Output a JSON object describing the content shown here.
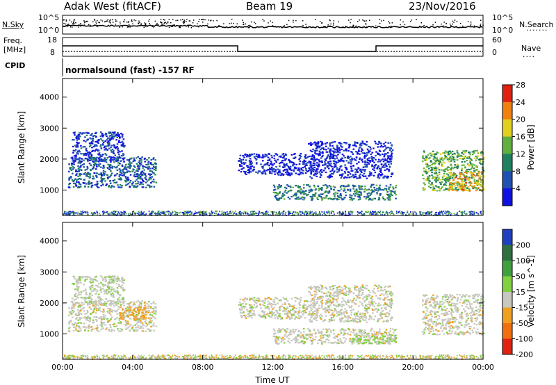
{
  "header": {
    "title": "Adak West (fitACF)",
    "beam": "Beam 19",
    "date": "23/Nov/2016"
  },
  "summary_panels": {
    "nsky_label": "N.Sky",
    "nsky_ticks": [
      "10^5",
      "10^0"
    ],
    "nsearch_label": "N.Search",
    "nsearch_ticks": [
      "10^5",
      "10^0"
    ],
    "freq_label_line1": "Freq.",
    "freq_label_line2": "[MHz]",
    "freq_ticks": [
      "18",
      "8"
    ],
    "nave_label": "Nave",
    "nave_ticks": [
      "60",
      "0"
    ],
    "cpid_label": "CPID",
    "cpid_text": "normalsound (fast) -157 RF"
  },
  "chart_data": [
    {
      "type": "heatmap",
      "panel": "power",
      "xlabel": "Time UT",
      "ylabel": "Slant Range [km]",
      "x_ticks": [
        "00:00",
        "04:00",
        "08:00",
        "12:00",
        "16:00",
        "20:00",
        "00:00"
      ],
      "x_range_hours": [
        0,
        24
      ],
      "y_ticks": [
        1000,
        2000,
        3000,
        4000
      ],
      "y_range_km": [
        180,
        4600
      ],
      "colorbar_label": "Power [dB]",
      "colorbar_ticks": [
        4,
        8,
        12,
        16,
        20,
        24,
        28
      ],
      "colorbar_colors": [
        "#1010e0",
        "#2050b0",
        "#208060",
        "#60b040",
        "#e0d020",
        "#f08010",
        "#e02010"
      ],
      "regions": [
        {
          "t": [
            0.3,
            5.3
          ],
          "r": [
            1100,
            2100
          ],
          "level": 9
        },
        {
          "t": [
            0.5,
            3.5
          ],
          "r": [
            1950,
            2900
          ],
          "level": 6
        },
        {
          "t": [
            10.0,
            14.0
          ],
          "r": [
            1500,
            2200
          ],
          "level": 4
        },
        {
          "t": [
            12.0,
            19.0
          ],
          "r": [
            700,
            1200
          ],
          "level": 11
        },
        {
          "t": [
            14.0,
            18.8
          ],
          "r": [
            1400,
            2600
          ],
          "level": 4
        },
        {
          "t": [
            20.5,
            24.0
          ],
          "r": [
            1000,
            2300
          ],
          "level": 15
        },
        {
          "t": [
            22.0,
            24.0
          ],
          "r": [
            1000,
            1600
          ],
          "level": 22
        }
      ]
    },
    {
      "type": "heatmap",
      "panel": "velocity",
      "xlabel": "Time UT",
      "ylabel": "Slant Range [km]",
      "x_ticks": [
        "00:00",
        "04:00",
        "08:00",
        "12:00",
        "16:00",
        "20:00",
        "00:00"
      ],
      "x_range_hours": [
        0,
        24
      ],
      "y_ticks": [
        1000,
        2000,
        3000,
        4000
      ],
      "y_range_km": [
        180,
        4600
      ],
      "colorbar_label": "Velocity [m s^-1]",
      "colorbar_ticks": [
        200,
        100,
        50,
        15,
        -15,
        -50,
        -100,
        -200
      ],
      "colorbar_colors": [
        "#2040c0",
        "#307040",
        "#40a040",
        "#80d040",
        "#c8c8c0",
        "#f0a020",
        "#f07010",
        "#e02010"
      ],
      "regions": [
        {
          "t": [
            0.3,
            5.3
          ],
          "r": [
            1100,
            2100
          ],
          "vel": 0
        },
        {
          "t": [
            3.2,
            4.8
          ],
          "r": [
            1500,
            1900
          ],
          "vel": -30
        },
        {
          "t": [
            0.5,
            3.5
          ],
          "r": [
            1950,
            2900
          ],
          "vel": 5
        },
        {
          "t": [
            10.0,
            14.0
          ],
          "r": [
            1500,
            2200
          ],
          "vel": 0
        },
        {
          "t": [
            12.0,
            19.0
          ],
          "r": [
            700,
            1200
          ],
          "vel": 0
        },
        {
          "t": [
            16.5,
            19.0
          ],
          "r": [
            700,
            1000
          ],
          "vel": 25
        },
        {
          "t": [
            14.0,
            18.8
          ],
          "r": [
            1400,
            2600
          ],
          "vel": 0
        },
        {
          "t": [
            20.5,
            24.0
          ],
          "r": [
            1000,
            2300
          ],
          "vel": 0
        }
      ]
    }
  ]
}
